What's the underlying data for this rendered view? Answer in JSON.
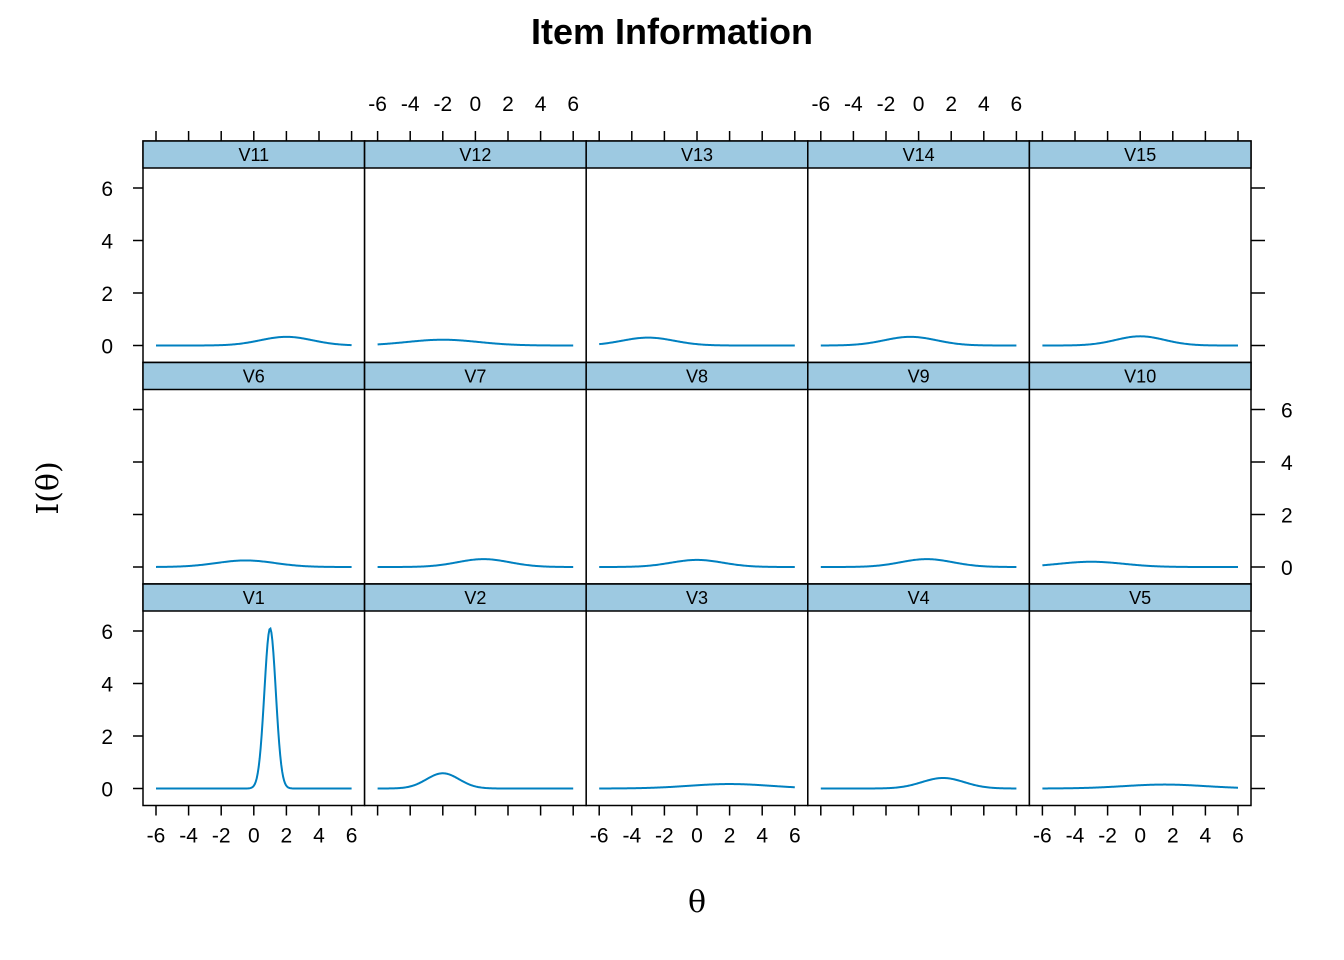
{
  "chart_data": {
    "type": "line",
    "title": "Item Information",
    "xlabel": "θ",
    "ylabel": "I(θ)",
    "xlim": [
      -6,
      6
    ],
    "ylim": [
      0,
      6
    ],
    "x_ticks": [
      -6,
      -4,
      -2,
      0,
      2,
      4,
      6
    ],
    "y_ticks": [
      0,
      2,
      4,
      6
    ],
    "line_color": "#0080c0",
    "strip_color": "#9dc9e1",
    "layout": {
      "rows": 3,
      "cols": 5
    },
    "panels": [
      {
        "name": "V11",
        "row": 0,
        "col": 0,
        "peak": 0.33,
        "center": 2.0,
        "width": 1.6
      },
      {
        "name": "V12",
        "row": 0,
        "col": 1,
        "peak": 0.22,
        "center": -2.0,
        "width": 2.2
      },
      {
        "name": "V13",
        "row": 0,
        "col": 2,
        "peak": 0.3,
        "center": -3.0,
        "width": 1.6
      },
      {
        "name": "V14",
        "row": 0,
        "col": 3,
        "peak": 0.33,
        "center": -0.5,
        "width": 1.6
      },
      {
        "name": "V15",
        "row": 0,
        "col": 4,
        "peak": 0.35,
        "center": 0.0,
        "width": 1.5
      },
      {
        "name": "V6",
        "row": 1,
        "col": 0,
        "peak": 0.25,
        "center": -0.5,
        "width": 1.8
      },
      {
        "name": "V7",
        "row": 1,
        "col": 1,
        "peak": 0.3,
        "center": 0.5,
        "width": 1.6
      },
      {
        "name": "V8",
        "row": 1,
        "col": 2,
        "peak": 0.27,
        "center": 0.0,
        "width": 1.6
      },
      {
        "name": "V9",
        "row": 1,
        "col": 3,
        "peak": 0.3,
        "center": 0.5,
        "width": 1.6
      },
      {
        "name": "V10",
        "row": 1,
        "col": 4,
        "peak": 0.2,
        "center": -3.0,
        "width": 2.0
      },
      {
        "name": "V1",
        "row": 2,
        "col": 0,
        "peak": 6.1,
        "center": 1.0,
        "width": 0.35
      },
      {
        "name": "V2",
        "row": 2,
        "col": 1,
        "peak": 0.58,
        "center": -2.0,
        "width": 1.0
      },
      {
        "name": "V3",
        "row": 2,
        "col": 2,
        "peak": 0.17,
        "center": 2.0,
        "width": 2.5
      },
      {
        "name": "V4",
        "row": 2,
        "col": 3,
        "peak": 0.4,
        "center": 1.5,
        "width": 1.3
      },
      {
        "name": "V5",
        "row": 2,
        "col": 4,
        "peak": 0.15,
        "center": 1.5,
        "width": 2.5
      }
    ]
  }
}
